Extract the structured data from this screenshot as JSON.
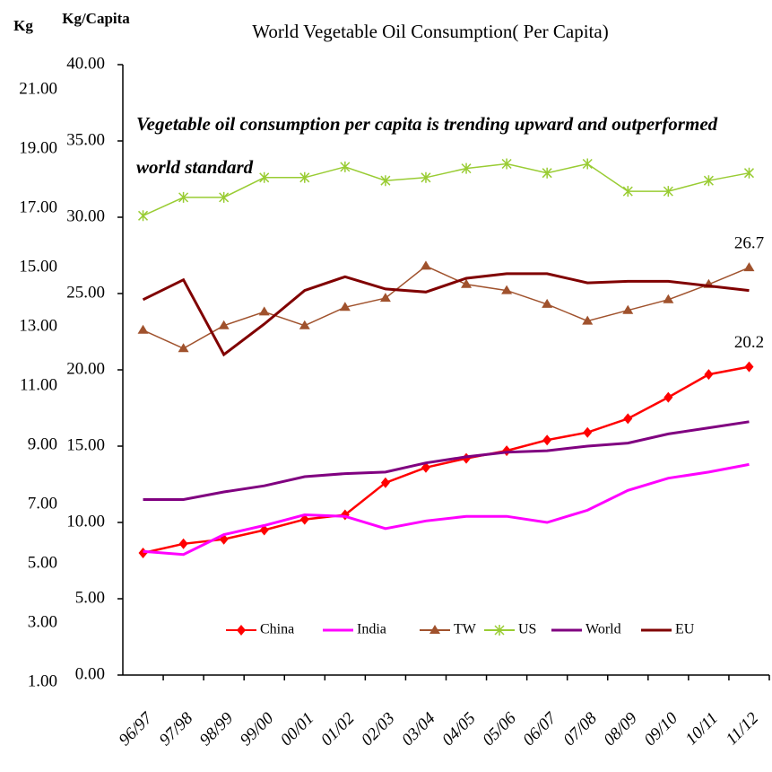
{
  "chart_data": {
    "type": "line",
    "title": "World Vegetable Oil Consumption( Per Capita)",
    "ylabel": "Kg/Capita",
    "y2label": "Kg",
    "annotation": "Vegetable oil consumption per capita is trending upward and outperformed world standard",
    "categories": [
      "96/97",
      "97/98",
      "98/99",
      "99/00",
      "00/01",
      "01/02",
      "02/03",
      "03/04",
      "04/05",
      "05/06",
      "06/07",
      "07/08",
      "08/09",
      "09/10",
      "10/11",
      "11/12"
    ],
    "ylim": [
      0,
      40
    ],
    "yticks": [
      {
        "value": 0,
        "label": "0.00"
      },
      {
        "value": 5,
        "label": "5.00"
      },
      {
        "value": 10,
        "label": "10.00"
      },
      {
        "value": 15,
        "label": "15.00"
      },
      {
        "value": 20,
        "label": "20.00"
      },
      {
        "value": 25,
        "label": "25.00"
      },
      {
        "value": 30,
        "label": "30.00"
      },
      {
        "value": 35,
        "label": "35.00"
      },
      {
        "value": 40,
        "label": "40.00"
      }
    ],
    "y2lim": [
      1,
      21
    ],
    "y2ticks": [
      {
        "value": 1,
        "label": "1.00"
      },
      {
        "value": 3,
        "label": "3.00"
      },
      {
        "value": 5,
        "label": "5.00"
      },
      {
        "value": 7,
        "label": "7.00"
      },
      {
        "value": 9,
        "label": "9.00"
      },
      {
        "value": 11,
        "label": "11.00"
      },
      {
        "value": 13,
        "label": "13.00"
      },
      {
        "value": 15,
        "label": "15.00"
      },
      {
        "value": 17,
        "label": "17.00"
      },
      {
        "value": 19,
        "label": "19.00"
      },
      {
        "value": 21,
        "label": "21.00"
      }
    ],
    "grid": false,
    "legend": "bottom",
    "series": [
      {
        "name": "China",
        "color": "#ff0000",
        "marker": "diamond",
        "values": [
          8.0,
          8.6,
          8.9,
          9.5,
          10.2,
          10.5,
          12.6,
          13.6,
          14.2,
          14.7,
          15.4,
          15.9,
          16.8,
          18.2,
          19.7,
          20.2
        ]
      },
      {
        "name": "India",
        "color": "#ff00ff",
        "marker": "none",
        "values": [
          8.1,
          7.9,
          9.2,
          9.8,
          10.5,
          10.4,
          9.6,
          10.1,
          10.4,
          10.4,
          10.0,
          10.8,
          12.1,
          12.9,
          13.3,
          13.8
        ]
      },
      {
        "name": "TW",
        "color": "#a0522d",
        "marker": "triangle",
        "values": [
          22.6,
          21.4,
          22.9,
          23.8,
          22.9,
          24.1,
          24.7,
          26.8,
          25.6,
          25.2,
          24.3,
          23.2,
          23.9,
          24.6,
          25.6,
          26.7
        ]
      },
      {
        "name": "US",
        "color": "#99cc33",
        "marker": "star",
        "values": [
          30.1,
          31.3,
          31.3,
          32.6,
          32.6,
          33.3,
          32.4,
          32.6,
          33.2,
          33.5,
          32.9,
          33.5,
          31.7,
          31.7,
          32.4,
          32.9
        ]
      },
      {
        "name": "World",
        "color": "#800080",
        "marker": "none",
        "values": [
          11.5,
          11.5,
          12.0,
          12.4,
          13.0,
          13.2,
          13.3,
          13.9,
          14.3,
          14.6,
          14.7,
          15.0,
          15.2,
          15.8,
          16.2,
          16.6
        ]
      },
      {
        "name": "EU",
        "color": "#800000",
        "marker": "none",
        "values": [
          24.6,
          25.9,
          21.0,
          23.0,
          25.2,
          26.1,
          25.3,
          25.1,
          26.0,
          26.3,
          26.3,
          25.7,
          25.8,
          25.8,
          25.5,
          25.2
        ]
      }
    ]
  }
}
